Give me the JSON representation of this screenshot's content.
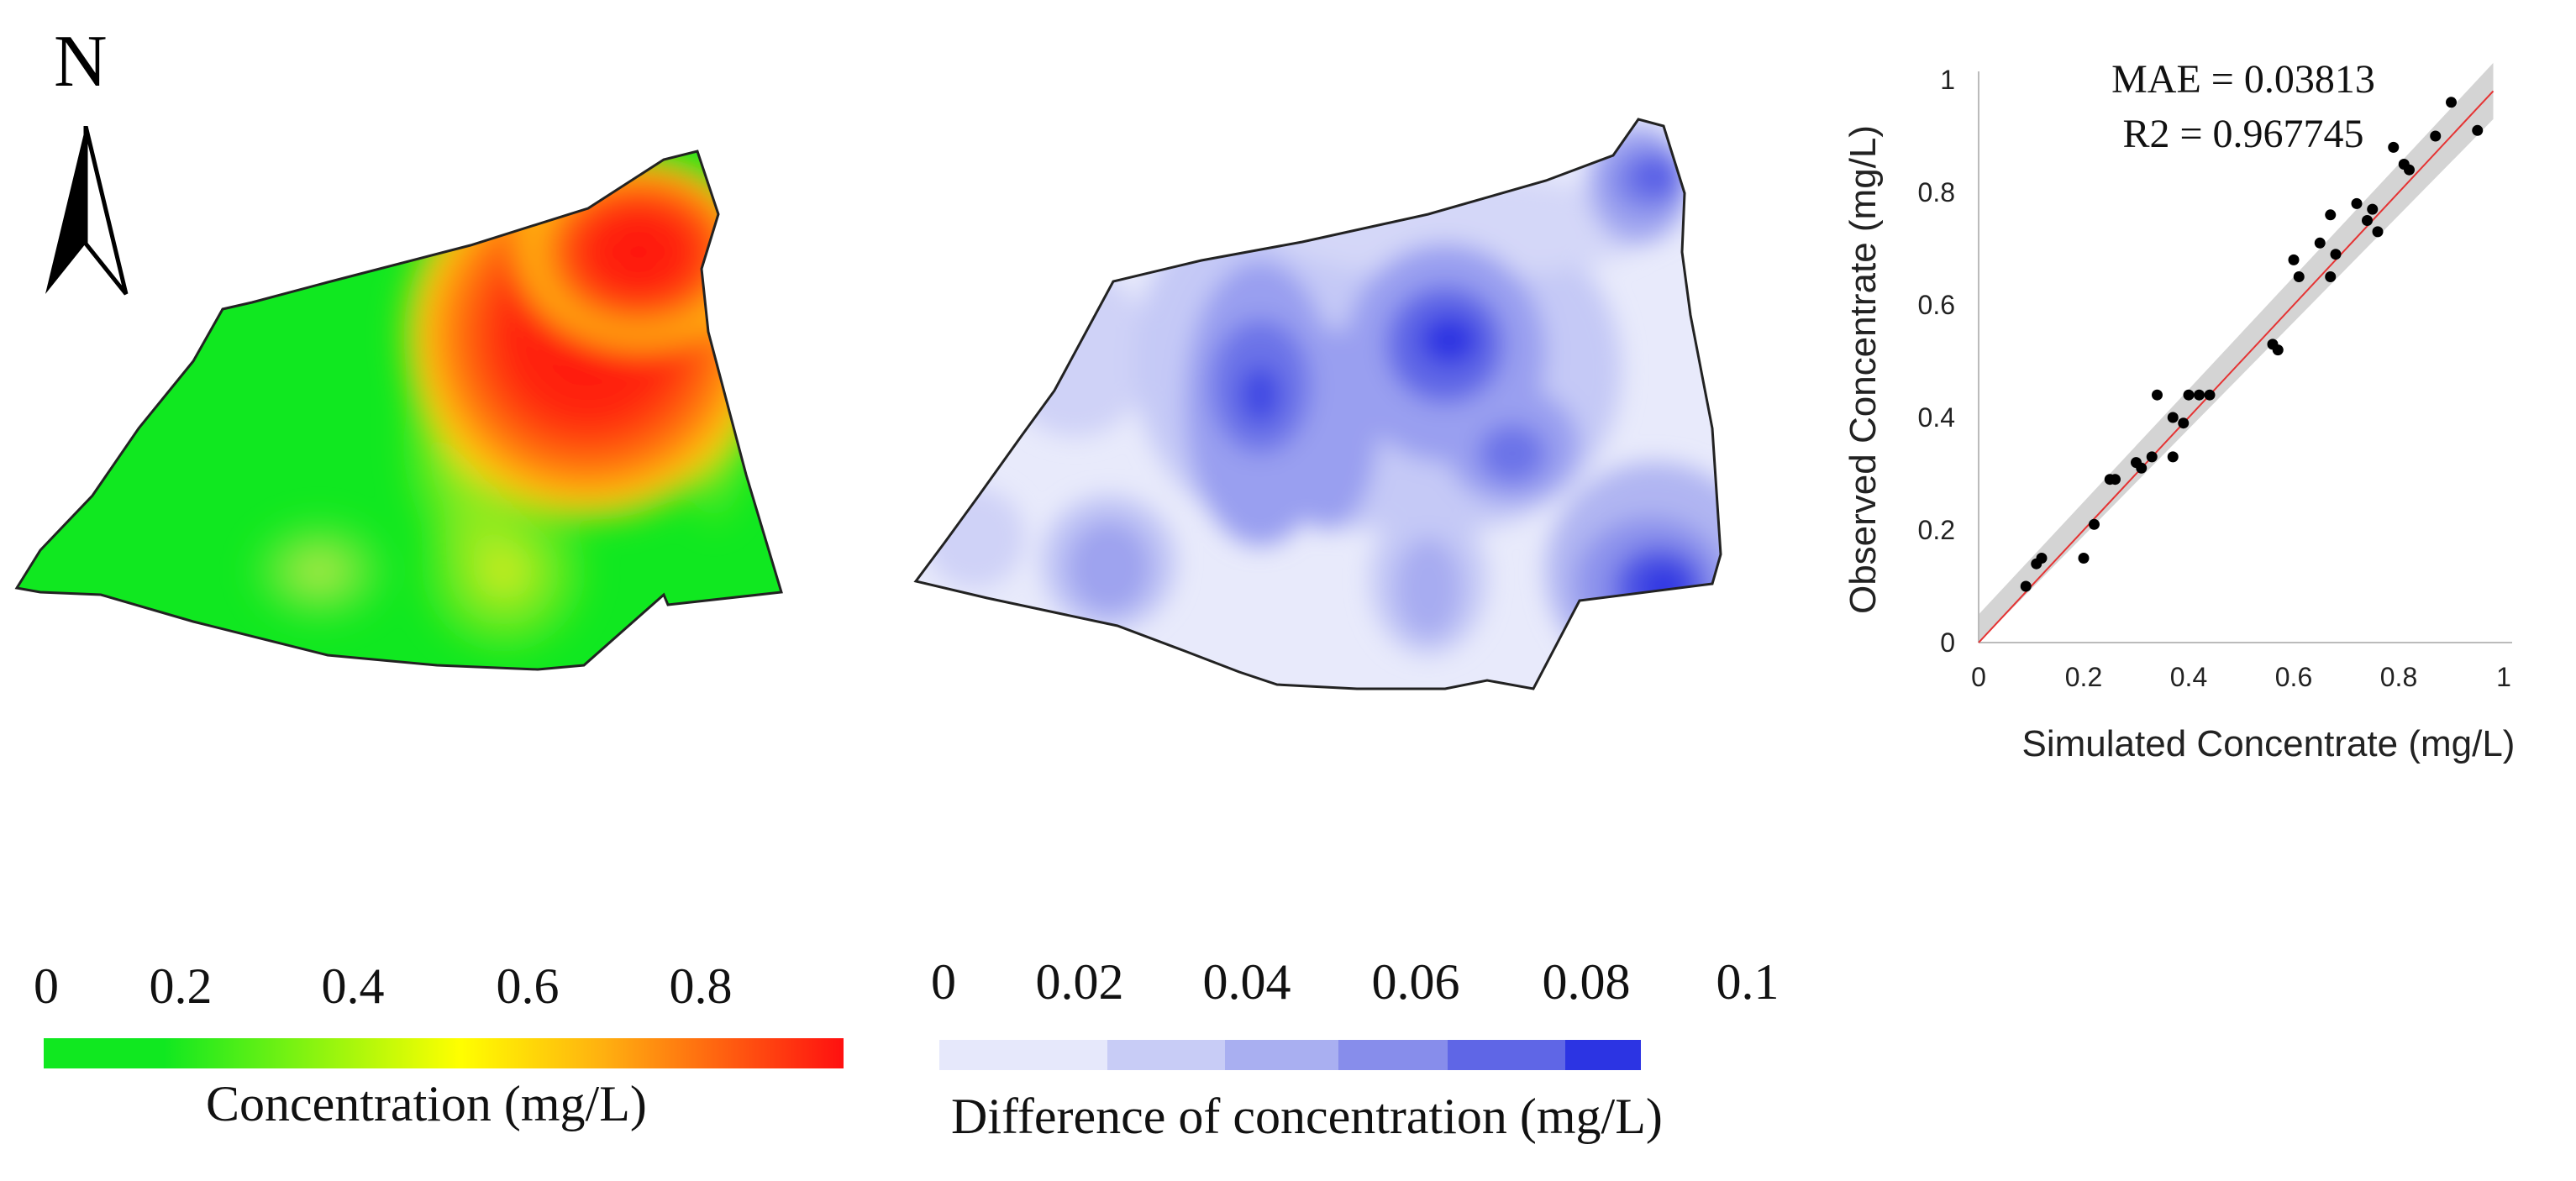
{
  "north_arrow": {
    "label": "N"
  },
  "concentration_map": {
    "legend_ticks": [
      "0",
      "0.2",
      "0.4",
      "0.6",
      "0.8"
    ],
    "legend_title": "Concentration (mg/L)",
    "colors": {
      "low": "#00ee22",
      "mid": "#ffff00",
      "high": "#ff1111"
    }
  },
  "difference_map": {
    "legend_ticks": [
      "0",
      "0.02",
      "0.04",
      "0.06",
      "0.08",
      "0.1"
    ],
    "legend_title": "Difference of concentration (mg/L)",
    "legend_colors": [
      "#e6e8fb",
      "#c8ccf6",
      "#a9aff1",
      "#878deb",
      "#5f66e6",
      "#2c34e3"
    ]
  },
  "chart_data": {
    "type": "scatter",
    "title": "",
    "annotations": [
      "MAE = 0.03813",
      "R2 = 0.967745"
    ],
    "xlabel": "Simulated Concentrate (mg/L)",
    "ylabel": "Observed Concentrate (mg/L)",
    "xlim": [
      0,
      1
    ],
    "ylim": [
      0,
      1
    ],
    "xticks": [
      "0",
      "0.2",
      "0.4",
      "0.6",
      "0.8",
      "1"
    ],
    "yticks": [
      "0",
      "0.2",
      "0.4",
      "0.6",
      "0.8",
      "1"
    ],
    "grid": false,
    "fit_line": {
      "from": [
        0,
        0
      ],
      "to": [
        0.98,
        0.98
      ],
      "color": "#e53333"
    },
    "confidence_band_halfwidth": 0.05,
    "x": [
      0.09,
      0.11,
      0.12,
      0.2,
      0.22,
      0.25,
      0.26,
      0.3,
      0.31,
      0.33,
      0.34,
      0.37,
      0.37,
      0.39,
      0.4,
      0.42,
      0.44,
      0.56,
      0.57,
      0.6,
      0.61,
      0.65,
      0.67,
      0.67,
      0.68,
      0.72,
      0.74,
      0.75,
      0.76,
      0.79,
      0.81,
      0.82,
      0.87,
      0.9,
      0.95
    ],
    "y": [
      0.1,
      0.14,
      0.15,
      0.15,
      0.21,
      0.29,
      0.29,
      0.32,
      0.31,
      0.33,
      0.44,
      0.33,
      0.4,
      0.39,
      0.44,
      0.44,
      0.44,
      0.53,
      0.52,
      0.68,
      0.65,
      0.71,
      0.76,
      0.65,
      0.69,
      0.78,
      0.75,
      0.77,
      0.73,
      0.88,
      0.85,
      0.84,
      0.9,
      0.96,
      0.91
    ]
  }
}
